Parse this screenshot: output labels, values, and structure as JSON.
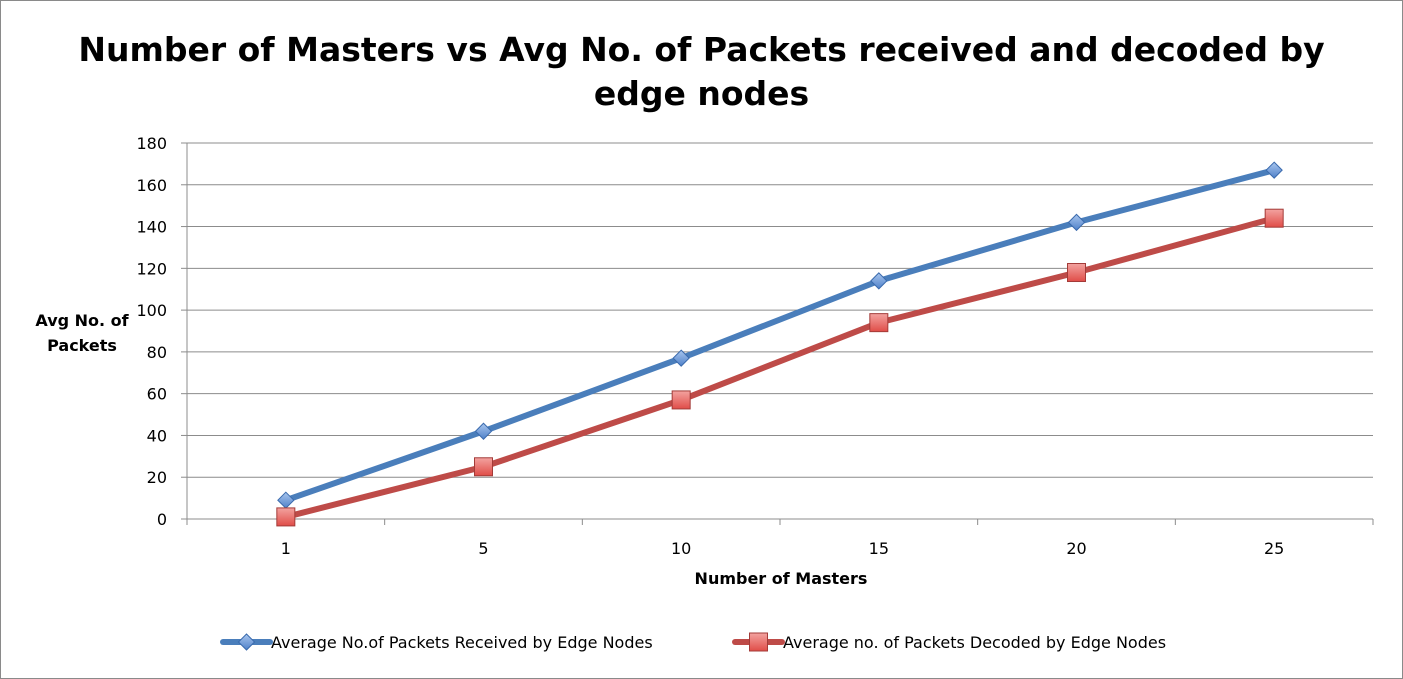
{
  "chart_data": {
    "type": "line",
    "title_lines": [
      "Number of Masters vs Avg No. of Packets received and decoded by",
      "edge nodes"
    ],
    "xlabel": "Number of Masters",
    "ylabel_lines": [
      "Avg No. of",
      "Packets"
    ],
    "categories": [
      "1",
      "5",
      "10",
      "15",
      "20",
      "25"
    ],
    "ylim": [
      0,
      180
    ],
    "yticks": [
      "0",
      "20",
      "40",
      "60",
      "80",
      "100",
      "120",
      "140",
      "160",
      "180"
    ],
    "grid": true,
    "legend_position": "bottom",
    "series": [
      {
        "name": "Average No.of Packets Received by Edge Nodes",
        "values": [
          9,
          42,
          77,
          114,
          142,
          167
        ],
        "color": "#4a7ebb",
        "marker": "diamond"
      },
      {
        "name": "Average no. of Packets Decoded by Edge Nodes",
        "values": [
          1,
          25,
          57,
          94,
          118,
          144
        ],
        "color": "#be4b48",
        "marker": "square"
      }
    ]
  }
}
